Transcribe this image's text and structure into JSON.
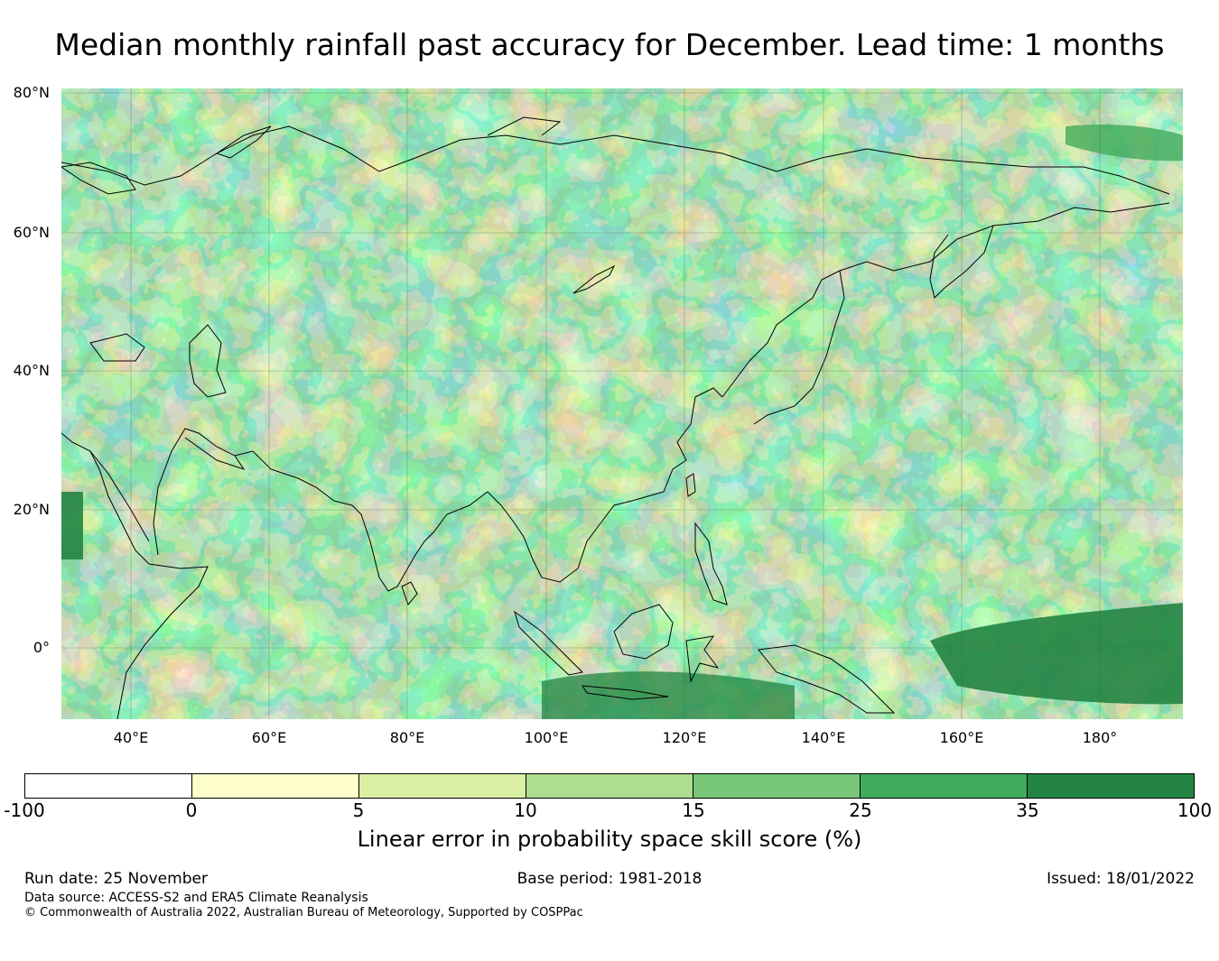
{
  "title": "Median monthly rainfall past accuracy for December. Lead time: 1 months",
  "map": {
    "lat_labels": [
      "80°N",
      "60°N",
      "40°N",
      "20°N",
      "0°"
    ],
    "lon_labels": [
      "40°E",
      "60°E",
      "80°E",
      "100°E",
      "120°E",
      "140°E",
      "160°E",
      "180°"
    ]
  },
  "colorbar": {
    "label": "Linear error in probability space skill score (%)",
    "ticks": [
      "-100",
      "0",
      "5",
      "10",
      "15",
      "25",
      "35",
      "100"
    ],
    "colors": [
      "#ffffff",
      "#ffffcc",
      "#d9f0a3",
      "#addd8e",
      "#78c679",
      "#41ab5d",
      "#238443"
    ]
  },
  "footer": {
    "run_date": "Run date: 25 November",
    "base_period": "Base period: 1981-2018",
    "issued": "Issued: 18/01/2022",
    "data_source": "Data source: ACCESS-S2 and ERA5 Climate Reanalysis",
    "copyright": "© Commonwealth of Australia 2022, Australian Bureau of Meteorology, Supported by COSPPac"
  }
}
